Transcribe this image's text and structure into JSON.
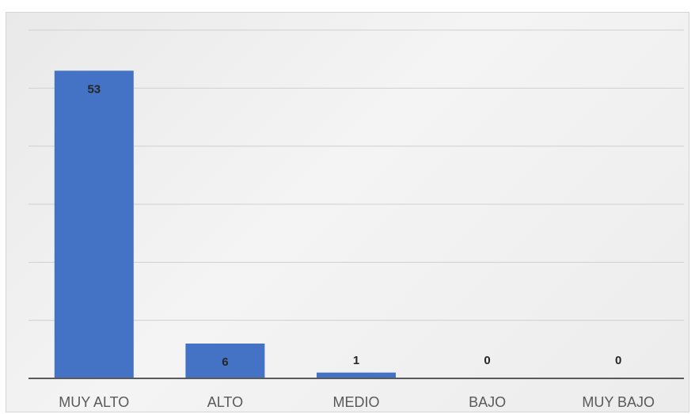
{
  "chart_data": {
    "type": "bar",
    "categories": [
      "MUY ALTO",
      "ALTO",
      "MEDIO",
      "BAJO",
      "MUY BAJO"
    ],
    "values": [
      53,
      6,
      1,
      0,
      0
    ],
    "data_labels": [
      "53",
      "6",
      "1",
      "0",
      "0"
    ],
    "ylim": [
      0,
      60
    ],
    "gridlines": [
      10,
      20,
      30,
      40,
      50,
      60
    ],
    "grid": true,
    "legend": "none",
    "bar_color": "#4472C4"
  }
}
